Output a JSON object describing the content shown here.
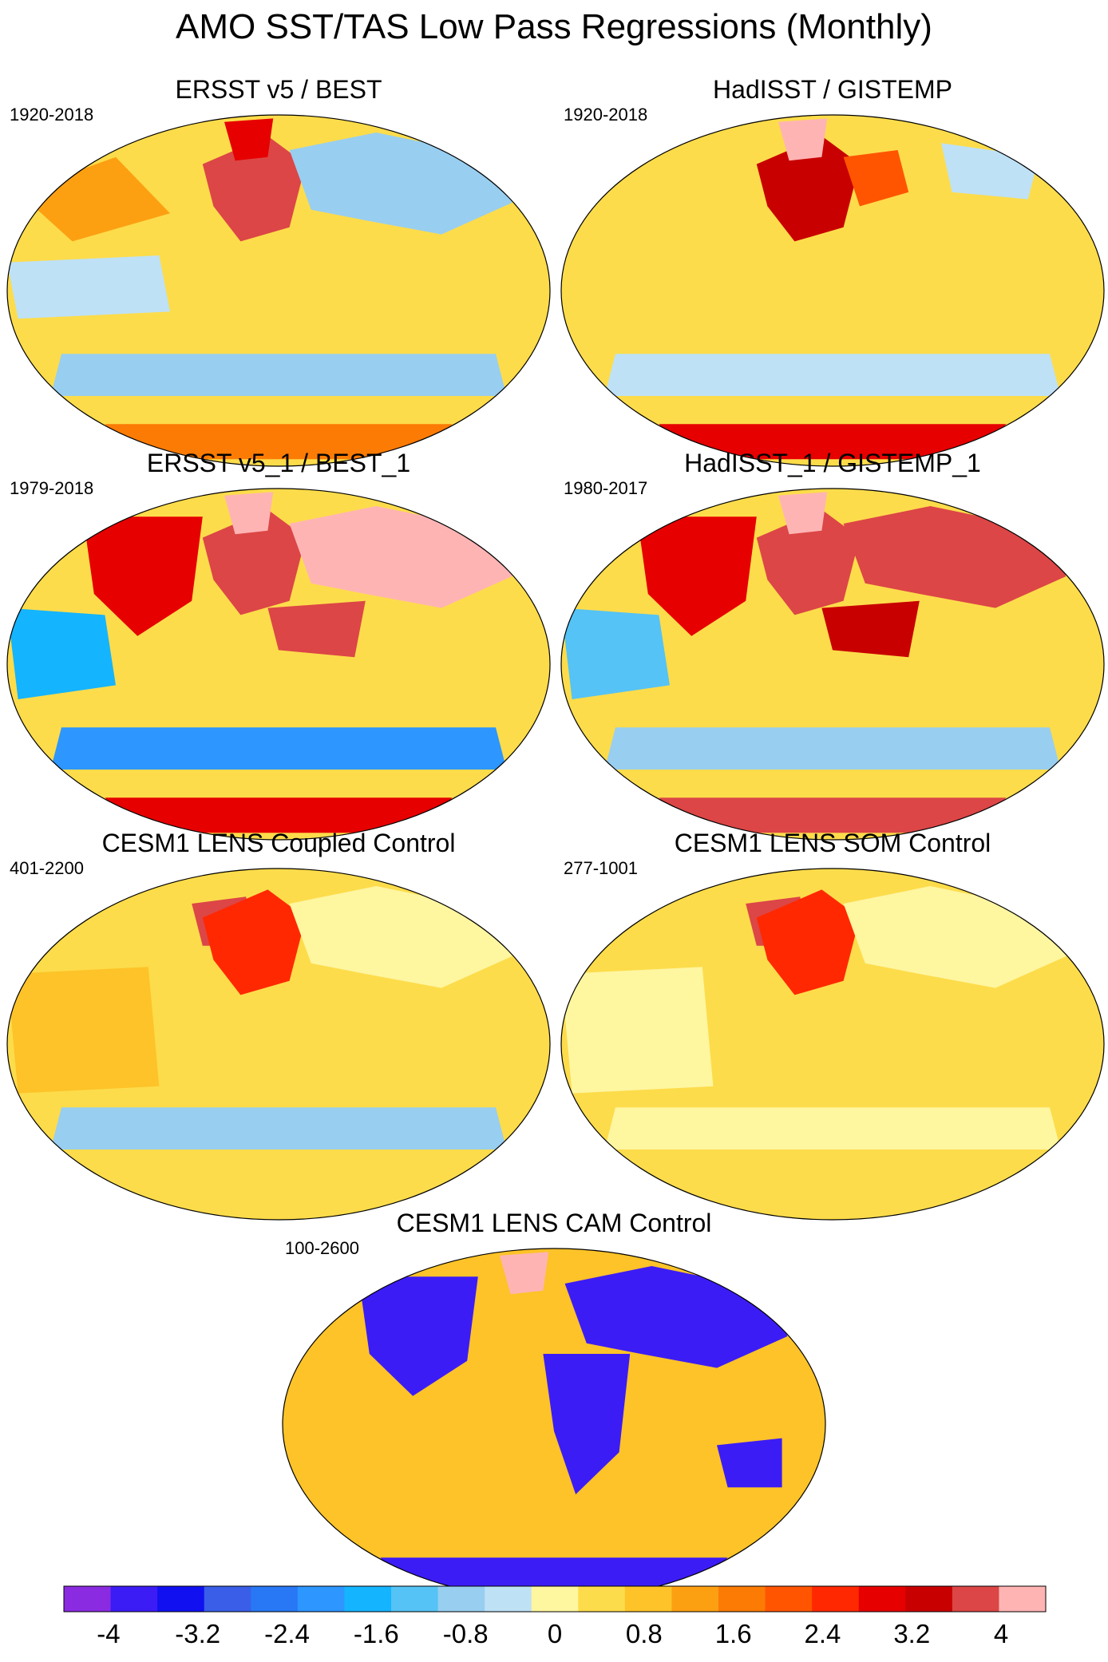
{
  "title": "AMO SST/TAS Low Pass Regressions (Monthly)",
  "chart_data": {
    "type": "heatmap",
    "projection": "global map (Winkel-type ellipse)",
    "panels": [
      {
        "id": "p1",
        "title": "ERSST v5 / BEST",
        "period": "1920-2018",
        "features": [
          {
            "region": "North Atlantic",
            "value": 3.2
          },
          {
            "region": "Greenland",
            "value": 2.4
          },
          {
            "region": "Eurasia",
            "value": -1.2
          },
          {
            "region": "Southern Ocean",
            "value": -1.2
          },
          {
            "region": "Antarctica",
            "value": 1.2
          },
          {
            "region": "North Pacific",
            "value": 0.8
          },
          {
            "region": "Tropical Pacific",
            "value": -0.8
          }
        ]
      },
      {
        "id": "p2",
        "title": "HadISST / GISTEMP",
        "period": "1920-2018",
        "features": [
          {
            "region": "North Atlantic",
            "value": 2.8
          },
          {
            "region": "Greenland",
            "value": 4
          },
          {
            "region": "Europe",
            "value": 1.6
          },
          {
            "region": "Siberia",
            "value": -0.8
          },
          {
            "region": "Southern Ocean",
            "value": -0.8
          },
          {
            "region": "Antarctica",
            "value": 2.4
          }
        ]
      },
      {
        "id": "p3",
        "title": "ERSST v5_1 / BEST_1",
        "period": "1979-2018",
        "features": [
          {
            "region": "North Atlantic",
            "value": 3.2
          },
          {
            "region": "Eurasia",
            "value": 3.6
          },
          {
            "region": "North Africa",
            "value": 3.2
          },
          {
            "region": "North America",
            "value": 2.4
          },
          {
            "region": "Greenland",
            "value": 4
          },
          {
            "region": "East Pacific",
            "value": -2
          },
          {
            "region": "Southern Ocean",
            "value": -2.4
          },
          {
            "region": "Antarctica",
            "value": 2.4
          }
        ]
      },
      {
        "id": "p4",
        "title": "HadISST_1 / GISTEMP_1",
        "period": "1980-2017",
        "features": [
          {
            "region": "North Atlantic",
            "value": 3.2
          },
          {
            "region": "Eurasia",
            "value": 3.2
          },
          {
            "region": "North Africa",
            "value": 2.8
          },
          {
            "region": "North America",
            "value": 2.4
          },
          {
            "region": "Greenland",
            "value": 4
          },
          {
            "region": "East Pacific",
            "value": -1.6
          },
          {
            "region": "Southern Ocean",
            "value": -1.2
          },
          {
            "region": "Antarctica",
            "value": 3.2
          }
        ]
      },
      {
        "id": "p5",
        "title": "CESM1 LENS Coupled Control",
        "period": "401-2200",
        "features": [
          {
            "region": "Labrador Sea",
            "value": 3.2
          },
          {
            "region": "North Atlantic",
            "value": 2
          },
          {
            "region": "Eurasia",
            "value": -0.4
          },
          {
            "region": "Southern Ocean",
            "value": -1.2
          },
          {
            "region": "Pacific",
            "value": 0.4
          }
        ]
      },
      {
        "id": "p6",
        "title": "CESM1 LENS SOM Control",
        "period": "277-1001",
        "features": [
          {
            "region": "Labrador Sea",
            "value": 3.2
          },
          {
            "region": "North Atlantic",
            "value": 2
          },
          {
            "region": "Eurasia",
            "value": -0.4
          },
          {
            "region": "Southern Ocean",
            "value": -0.4
          },
          {
            "region": "Pacific",
            "value": -0.4
          }
        ]
      },
      {
        "id": "p7",
        "title": "CESM1 LENS CAM Control",
        "period": "100-2600",
        "features": [
          {
            "region": "Oceans",
            "value": 0.4
          },
          {
            "region": "Eurasia",
            "value": -4
          },
          {
            "region": "Africa",
            "value": -4
          },
          {
            "region": "North America",
            "value": -4
          },
          {
            "region": "Australia",
            "value": -4
          },
          {
            "region": "Greenland",
            "value": 4
          },
          {
            "region": "Antarctica",
            "value": -4
          }
        ]
      }
    ],
    "colorbar": {
      "ticks": [
        "-4",
        "-3.2",
        "-2.4",
        "-1.6",
        "-0.8",
        "0",
        "0.8",
        "1.6",
        "2.4",
        "3.2",
        "4"
      ],
      "range": [
        -4.4,
        4.4
      ],
      "bin_width": 0.4,
      "colors": [
        "#8a2be2",
        "#3c1cf5",
        "#1010f0",
        "#3a5ee8",
        "#2878f5",
        "#2d96ff",
        "#15b4ff",
        "#55c3f5",
        "#98cef0",
        "#bee1f5",
        "#fff6a0",
        "#fddc4b",
        "#fdc328",
        "#fca012",
        "#fb7b05",
        "#ff5500",
        "#ff2800",
        "#e60000",
        "#c80000",
        "#dc4646",
        "#ffb4b4"
      ]
    }
  }
}
